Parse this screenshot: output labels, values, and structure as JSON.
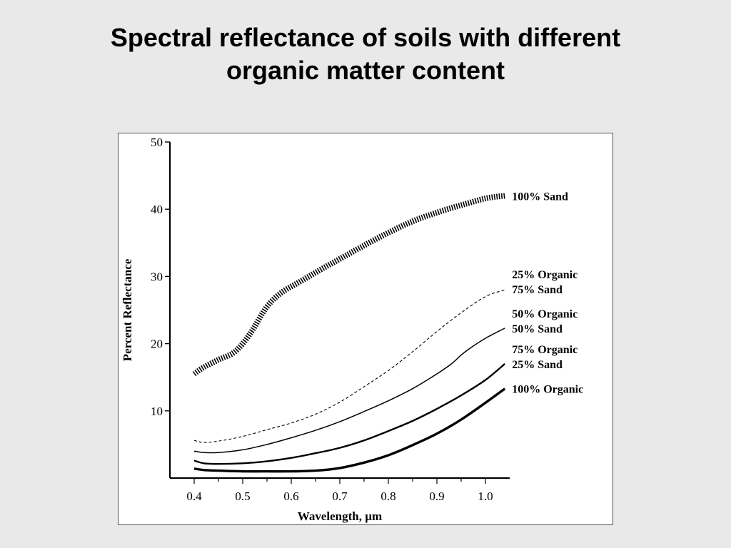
{
  "slide": {
    "title_line1": "Spectral reflectance of soils with different",
    "title_line2": "organic matter content"
  },
  "colors": {
    "background": "#e9e9e9",
    "plot_background": "#ffffff",
    "ink": "#000000"
  },
  "chart_data": {
    "type": "line",
    "title": "",
    "xlabel": "Wavelength, µm",
    "ylabel": "Percent Reflectance",
    "xlim": [
      0.35,
      1.05
    ],
    "ylim": [
      0,
      50
    ],
    "x_ticks": [
      {
        "value": 0.4,
        "label": "0.4"
      },
      {
        "value": 0.5,
        "label": "0.5"
      },
      {
        "value": 0.6,
        "label": "0.6"
      },
      {
        "value": 0.7,
        "label": "0.7"
      },
      {
        "value": 0.8,
        "label": "0.8"
      },
      {
        "value": 0.9,
        "label": "0.9"
      },
      {
        "value": 1.0,
        "label": "1.0"
      }
    ],
    "y_ticks": [
      {
        "value": 10,
        "label": "10"
      },
      {
        "value": 20,
        "label": "20"
      },
      {
        "value": 30,
        "label": "30"
      },
      {
        "value": 40,
        "label": "40"
      },
      {
        "value": 50,
        "label": "50"
      }
    ],
    "grid": false,
    "legend": "labels at right end of each curve",
    "series": [
      {
        "labels": [
          "100% Sand"
        ],
        "style": "hatched-thick",
        "x": [
          0.4,
          0.42,
          0.45,
          0.48,
          0.5,
          0.52,
          0.55,
          0.58,
          0.62,
          0.66,
          0.7,
          0.75,
          0.8,
          0.85,
          0.9,
          0.95,
          1.0,
          1.04
        ],
        "y": [
          15.5,
          16.5,
          17.6,
          18.6,
          20.0,
          22.0,
          25.5,
          27.6,
          29.3,
          31.0,
          32.6,
          34.6,
          36.5,
          38.2,
          39.5,
          40.6,
          41.6,
          42.0
        ]
      },
      {
        "labels": [
          "25% Organic",
          "75% Sand"
        ],
        "style": "dashed",
        "x": [
          0.4,
          0.42,
          0.45,
          0.5,
          0.55,
          0.6,
          0.65,
          0.7,
          0.75,
          0.8,
          0.85,
          0.9,
          0.95,
          1.0,
          1.04
        ],
        "y": [
          5.6,
          5.3,
          5.5,
          6.2,
          7.2,
          8.2,
          9.5,
          11.3,
          13.6,
          16.0,
          18.8,
          21.8,
          24.6,
          27.0,
          28.0
        ]
      },
      {
        "labels": [
          "50% Organic",
          "50% Sand"
        ],
        "style": "solid-thin",
        "x": [
          0.4,
          0.42,
          0.45,
          0.5,
          0.55,
          0.6,
          0.65,
          0.7,
          0.75,
          0.8,
          0.85,
          0.9,
          0.93,
          0.95,
          0.97,
          1.0,
          1.04
        ],
        "y": [
          4.0,
          3.8,
          3.8,
          4.2,
          5.0,
          6.0,
          7.1,
          8.4,
          9.9,
          11.5,
          13.3,
          15.5,
          17.0,
          18.3,
          19.4,
          20.8,
          22.3
        ]
      },
      {
        "labels": [
          "75% Organic",
          "25% Sand"
        ],
        "style": "solid-medium",
        "x": [
          0.4,
          0.42,
          0.45,
          0.5,
          0.55,
          0.6,
          0.65,
          0.7,
          0.75,
          0.8,
          0.85,
          0.9,
          0.95,
          1.0,
          1.04
        ],
        "y": [
          2.6,
          2.2,
          2.1,
          2.2,
          2.5,
          3.0,
          3.7,
          4.5,
          5.6,
          7.0,
          8.5,
          10.3,
          12.3,
          14.6,
          17.0
        ]
      },
      {
        "labels": [
          "100% Organic"
        ],
        "style": "solid-thick",
        "x": [
          0.4,
          0.42,
          0.45,
          0.5,
          0.55,
          0.6,
          0.65,
          0.7,
          0.75,
          0.8,
          0.85,
          0.9,
          0.95,
          1.0,
          1.04
        ],
        "y": [
          1.4,
          1.2,
          1.1,
          1.0,
          1.0,
          1.0,
          1.1,
          1.5,
          2.3,
          3.4,
          4.9,
          6.6,
          8.7,
          11.2,
          13.3
        ]
      }
    ]
  }
}
